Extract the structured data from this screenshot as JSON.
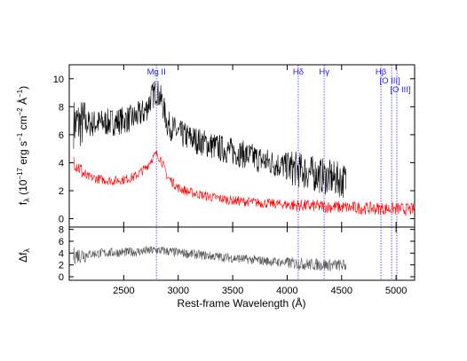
{
  "chart_data": [
    {
      "type": "line",
      "panel": "top",
      "ylabel": "f_λ (10^-17 erg s^-1 cm^-2 Å^-1)",
      "ylabel_parts": {
        "f": "f",
        "lambda": "λ",
        "unit_a": " (10",
        "exp1": "−17",
        "unit_b": " erg s",
        "exp2": "−1",
        "unit_c": " cm",
        "exp3": "−2",
        "unit_d": " Å",
        "exp4": "−1",
        "close": ")"
      },
      "xlim": [
        2000,
        5170
      ],
      "ylim": [
        -0.6,
        11
      ],
      "yticks": [
        "0",
        "2",
        "4",
        "6",
        "8",
        "10"
      ],
      "ytick_values": [
        0,
        2,
        4,
        6,
        8,
        10
      ],
      "series": [
        {
          "color": "#000000",
          "x": [
            2040,
            2200,
            2400,
            2600,
            2700,
            2750,
            2800,
            2850,
            2900,
            3000,
            3200,
            3400,
            3600,
            3800,
            4000,
            4200,
            4400,
            4540
          ],
          "y": [
            6.8,
            6.8,
            6.9,
            7.2,
            7.7,
            8.6,
            9.2,
            8.4,
            6.8,
            6.1,
            5.5,
            5.0,
            4.6,
            4.1,
            3.7,
            3.3,
            2.9,
            2.7
          ],
          "noise": 1.0
        },
        {
          "color": "#ff0000",
          "x": [
            2040,
            2150,
            2300,
            2400,
            2500,
            2600,
            2700,
            2760,
            2800,
            2840,
            2900,
            3000,
            3100,
            3300,
            3500,
            3800,
            4100,
            4400,
            4700,
            5000,
            5170
          ],
          "y": [
            4.2,
            3.0,
            2.8,
            2.7,
            2.8,
            3.0,
            3.6,
            4.3,
            4.6,
            4.3,
            3.0,
            2.2,
            1.9,
            1.55,
            1.3,
            1.1,
            0.95,
            0.85,
            0.75,
            0.7,
            0.65
          ],
          "noise": 0.35
        }
      ],
      "emission_lines": [
        {
          "label": "Mg II",
          "x": 2800
        },
        {
          "label": "Hδ",
          "x": 4102
        },
        {
          "label": "Hγ",
          "x": 4340
        },
        {
          "label": "Hβ",
          "x": 4861
        },
        {
          "label": "[O III]",
          "x": 4959
        },
        {
          "label": "[O III]",
          "x": 5007
        }
      ]
    },
    {
      "type": "line",
      "panel": "bottom",
      "ylabel": "Δf_λ",
      "ylabel_parts": {
        "delta": "Δf",
        "lambda": "λ"
      },
      "xlabel": "Rest-frame Wavelength  (Å)",
      "xlim": [
        2000,
        5170
      ],
      "ylim": [
        -0.6,
        8.4
      ],
      "xticks": [
        "2500",
        "3000",
        "3500",
        "4000",
        "4500",
        "5000"
      ],
      "xtick_values": [
        2500,
        3000,
        3500,
        4000,
        4500,
        5000
      ],
      "yticks": [
        "0",
        "2",
        "4",
        "6",
        "8"
      ],
      "ytick_values": [
        0,
        2,
        4,
        6,
        8
      ],
      "series": [
        {
          "color": "#555555",
          "x": [
            2040,
            2300,
            2600,
            2800,
            3000,
            3300,
            3600,
            3900,
            4200,
            4540
          ],
          "y": [
            3.6,
            4.0,
            4.2,
            4.5,
            4.1,
            3.5,
            3.0,
            2.5,
            2.1,
            1.9
          ],
          "noise": 0.8
        }
      ]
    }
  ]
}
